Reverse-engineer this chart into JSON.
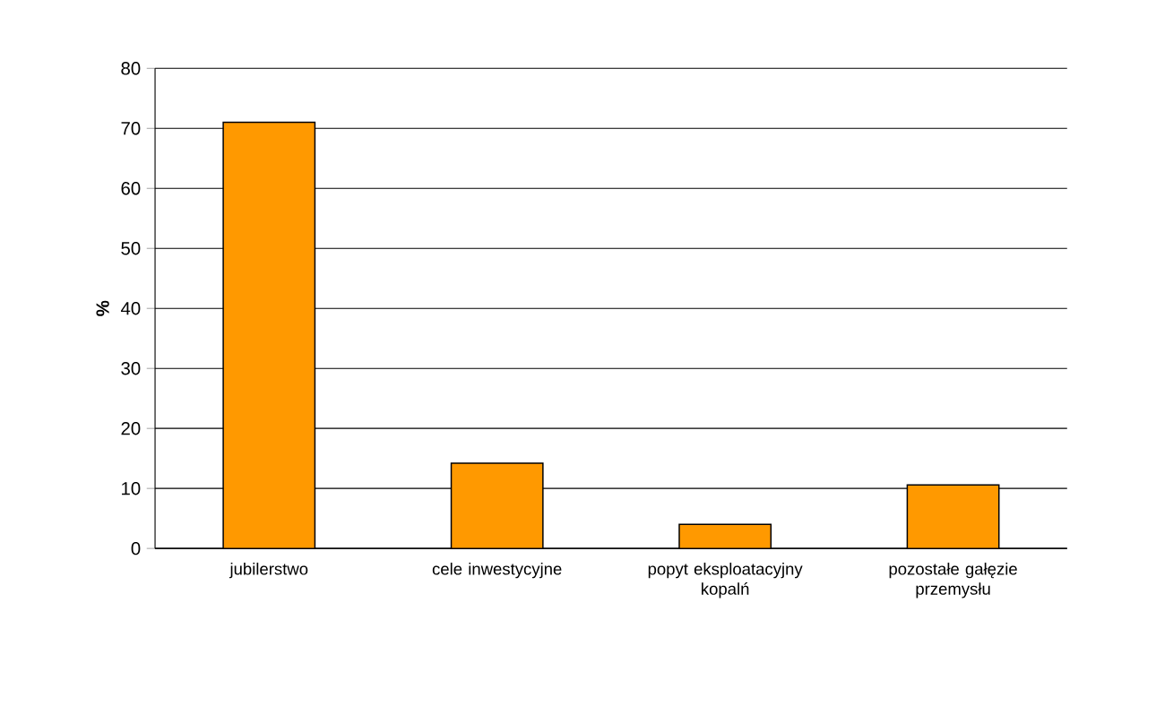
{
  "chart_data": {
    "type": "bar",
    "ylabel": "%",
    "categories": [
      "jubilerstwo",
      "cele inwestycyjne",
      "popyt eksploatacyjny kopalń",
      "pozostałe gałęzie przemysłu"
    ],
    "values": [
      71,
      14.2,
      4,
      10.6
    ],
    "color": "#ff9900",
    "ylim": [
      0,
      80
    ],
    "yticks": [
      0,
      10,
      20,
      30,
      40,
      50,
      60,
      70,
      80
    ],
    "grid": "y"
  }
}
